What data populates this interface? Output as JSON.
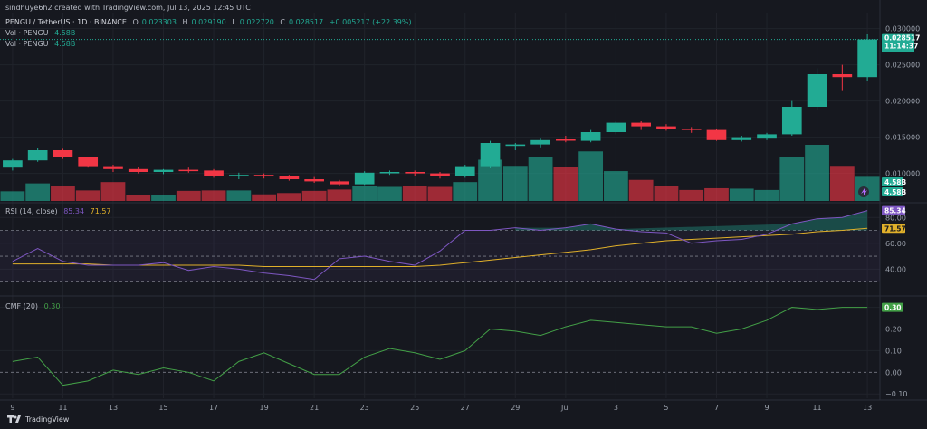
{
  "header": {
    "attribution": "sindhuye6h2 created with TradingView.com, Jul 13, 2025 12:45 UTC",
    "symbol": "PENGU / TetherUS · 1D · BINANCE",
    "o_label": "O",
    "o": "0.023303",
    "h_label": "H",
    "h": "0.029190",
    "l_label": "L",
    "l": "0.022720",
    "c_label": "C",
    "c": "0.028517",
    "change": "+0.005217 (+22.39%)",
    "vol1_label": "Vol · PENGU",
    "vol1": "4.58B",
    "vol2_label": "Vol · PENGU",
    "vol2": "4.58B"
  },
  "price_axis": {
    "ticks": [
      "0.030000",
      "0.025000",
      "0.020000",
      "0.015000",
      "0.010000"
    ],
    "last_price": "0.028517",
    "countdown": "11:14:37",
    "vol_tag1": "4.58B",
    "vol_tag2": "4.58B"
  },
  "rsi": {
    "label": "RSI (14, close)",
    "value": "85.34",
    "ma": "71.57",
    "ticks": [
      "80.00",
      "60.00",
      "40.00"
    ]
  },
  "cmf": {
    "label": "CMF (20)",
    "value": "0.30",
    "ticks": [
      "0.30",
      "0.20",
      "0.10",
      "0.00",
      "−0.10"
    ]
  },
  "x_axis": [
    "9",
    "11",
    "13",
    "15",
    "17",
    "19",
    "21",
    "23",
    "25",
    "27",
    "29",
    "Jul",
    "3",
    "5",
    "7",
    "9",
    "11",
    "13"
  ],
  "brand": "TradingView",
  "colors": {
    "up": "#22ab94",
    "down": "#f23645",
    "rsi": "#7e57c2",
    "rsi_ma": "#e0b02a",
    "cmf": "#43a047"
  },
  "chart_data": {
    "type": "candlestick",
    "dates": [
      "Jun 9",
      "Jun 10",
      "Jun 11",
      "Jun 12",
      "Jun 13",
      "Jun 14",
      "Jun 15",
      "Jun 16",
      "Jun 17",
      "Jun 18",
      "Jun 19",
      "Jun 20",
      "Jun 21",
      "Jun 22",
      "Jun 23",
      "Jun 24",
      "Jun 25",
      "Jun 26",
      "Jun 27",
      "Jun 28",
      "Jun 29",
      "Jun 30",
      "Jul 1",
      "Jul 2",
      "Jul 3",
      "Jul 4",
      "Jul 5",
      "Jul 6",
      "Jul 7",
      "Jul 8",
      "Jul 9",
      "Jul 10",
      "Jul 11",
      "Jul 12",
      "Jul 13"
    ],
    "ohlc": [
      [
        0.0108,
        0.012,
        0.0104,
        0.0118
      ],
      [
        0.0118,
        0.0135,
        0.0116,
        0.0132
      ],
      [
        0.0132,
        0.0134,
        0.012,
        0.0122
      ],
      [
        0.0122,
        0.0123,
        0.0108,
        0.011
      ],
      [
        0.011,
        0.0112,
        0.0102,
        0.0106
      ],
      [
        0.0106,
        0.0109,
        0.01,
        0.0102
      ],
      [
        0.0102,
        0.0106,
        0.0099,
        0.0105
      ],
      [
        0.0105,
        0.0108,
        0.0101,
        0.0104
      ],
      [
        0.0104,
        0.0106,
        0.0094,
        0.0096
      ],
      [
        0.0096,
        0.0101,
        0.0092,
        0.0098
      ],
      [
        0.0098,
        0.01,
        0.0093,
        0.0096
      ],
      [
        0.0096,
        0.0098,
        0.009,
        0.0092
      ],
      [
        0.0092,
        0.0095,
        0.0087,
        0.0089
      ],
      [
        0.0089,
        0.0091,
        0.0083,
        0.0085
      ],
      [
        0.0085,
        0.0103,
        0.0084,
        0.0101
      ],
      [
        0.0101,
        0.0104,
        0.0098,
        0.0102
      ],
      [
        0.0102,
        0.0104,
        0.0097,
        0.01
      ],
      [
        0.01,
        0.0102,
        0.0093,
        0.0096
      ],
      [
        0.0096,
        0.0112,
        0.0094,
        0.011
      ],
      [
        0.011,
        0.0145,
        0.0107,
        0.0142
      ],
      [
        0.0138,
        0.0142,
        0.0132,
        0.014
      ],
      [
        0.014,
        0.0148,
        0.0136,
        0.0146
      ],
      [
        0.0147,
        0.0152,
        0.0143,
        0.0146
      ],
      [
        0.0145,
        0.016,
        0.0143,
        0.0157
      ],
      [
        0.0157,
        0.0172,
        0.0154,
        0.017
      ],
      [
        0.017,
        0.0172,
        0.016,
        0.0165
      ],
      [
        0.0165,
        0.0168,
        0.0159,
        0.0162
      ],
      [
        0.0162,
        0.0164,
        0.0156,
        0.016
      ],
      [
        0.016,
        0.0161,
        0.0145,
        0.0146
      ],
      [
        0.0146,
        0.0152,
        0.0144,
        0.015
      ],
      [
        0.0148,
        0.0156,
        0.0146,
        0.0154
      ],
      [
        0.0154,
        0.02,
        0.0152,
        0.0192
      ],
      [
        0.0192,
        0.0245,
        0.0188,
        0.0237
      ],
      [
        0.0237,
        0.025,
        0.0215,
        0.0233
      ],
      [
        0.0233,
        0.0292,
        0.0227,
        0.0285
      ]
    ],
    "volume_rel": [
      0.22,
      0.4,
      0.33,
      0.24,
      0.43,
      0.14,
      0.13,
      0.23,
      0.24,
      0.24,
      0.15,
      0.18,
      0.23,
      0.26,
      0.35,
      0.32,
      0.33,
      0.32,
      0.43,
      0.94,
      0.8,
      1.0,
      0.78,
      1.13,
      0.68,
      0.48,
      0.35,
      0.25,
      0.29,
      0.28,
      0.25,
      1.0,
      1.28,
      0.8,
      0.55
    ],
    "rsi": [
      46,
      56,
      46,
      43,
      43,
      43,
      45,
      39,
      42,
      40,
      37,
      35,
      32,
      48,
      50,
      46,
      43,
      54,
      70,
      70,
      72,
      70,
      72,
      75,
      71,
      69,
      68,
      60,
      62,
      63,
      67,
      75,
      79,
      80,
      85.34
    ],
    "rsi_ma": [
      44,
      44,
      44,
      44,
      43,
      43,
      43,
      43,
      43,
      43,
      42,
      42,
      42,
      42,
      42,
      42,
      42,
      43,
      45,
      47,
      49,
      51,
      53,
      55,
      58,
      60,
      62,
      63,
      64,
      65,
      66,
      67,
      69,
      70,
      71.57
    ],
    "cmf": [
      0.05,
      0.07,
      -0.06,
      -0.04,
      0.01,
      -0.01,
      0.02,
      0.0,
      -0.04,
      0.05,
      0.09,
      0.04,
      -0.01,
      -0.01,
      0.07,
      0.11,
      0.09,
      0.06,
      0.1,
      0.2,
      0.19,
      0.17,
      0.21,
      0.24,
      0.23,
      0.22,
      0.21,
      0.21,
      0.18,
      0.2,
      0.24,
      0.3,
      0.29,
      0.3,
      0.3
    ],
    "price_ylim": [
      0.0062,
      0.0322
    ],
    "rsi_ylim": [
      22,
      90
    ],
    "cmf_ylim": [
      -0.12,
      0.34
    ]
  }
}
